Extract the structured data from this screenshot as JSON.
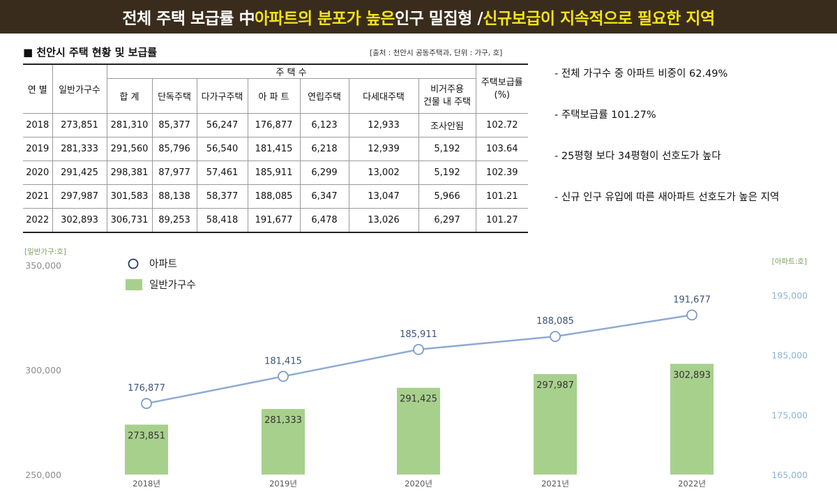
{
  "banner": {
    "part1": "전체 주택 보급률 中 ",
    "part2": "아파트의 분포가 높은",
    "part3": " 인구 밀집형 / ",
    "part4": "신규보급이 지속적으로 필요한 지역"
  },
  "table": {
    "title": "■ 천안시 주택 현황 및 보급률",
    "source": "[출처 : 천안시 공동주택과, 단위 : 가구, 호]",
    "header_group": "주 택 수",
    "headers": {
      "year": "연 별",
      "households": "일반가구수",
      "total": "합 계",
      "detached": "단독주택",
      "multi_household": "다가구주택",
      "apartment": "아 파 트",
      "row_house": "연립주택",
      "multiplex": "다세대주택",
      "nonres_line1": "비거주용",
      "nonres_line2": "건물 내 주택",
      "rate_line1": "주택보급률",
      "rate_line2": "(%)"
    },
    "rows": [
      [
        "2018",
        "273,851",
        "281,310",
        "85,377",
        "56,247",
        "176,877",
        "6,123",
        "12,933",
        "조사안됨",
        "102.72"
      ],
      [
        "2019",
        "281,333",
        "291,560",
        "85,796",
        "56,540",
        "181,415",
        "6,218",
        "12,939",
        "5,192",
        "103.64"
      ],
      [
        "2020",
        "291,425",
        "298,381",
        "87,977",
        "57,461",
        "185,911",
        "6,299",
        "13,002",
        "5,192",
        "102.39"
      ],
      [
        "2021",
        "297,987",
        "301,583",
        "88,138",
        "58,377",
        "188,085",
        "6,347",
        "13,047",
        "5,966",
        "101.21"
      ],
      [
        "2022",
        "302,893",
        "306,731",
        "89,253",
        "58,418",
        "191,677",
        "6,478",
        "13,026",
        "6,297",
        "101.27"
      ]
    ]
  },
  "bullets": [
    "- 전체 가구수 중 아파트 비중이 62.49%",
    "- 주택보급률 101.27%",
    "- 25평형 보다 34평형이 선호도가 높다",
    "- 신규 인구 유입에 따른 새아파트 선호도가 높은 지역"
  ],
  "chart_data": {
    "type": "bar",
    "categories": [
      "2018년",
      "2019년",
      "2020년",
      "2021년",
      "2022년"
    ],
    "series": [
      {
        "name": "일반가구수",
        "type": "bar",
        "axis": "left",
        "values": [
          273851,
          281333,
          291425,
          297987,
          302893
        ],
        "labels": [
          "273,851",
          "281,333",
          "291,425",
          "297,987",
          "302,893"
        ],
        "color": "#a8d08d"
      },
      {
        "name": "아파트",
        "type": "line",
        "axis": "right",
        "values": [
          176877,
          181415,
          185911,
          188085,
          191677
        ],
        "labels": [
          "176,877",
          "181,415",
          "185,911",
          "188,085",
          "191,677"
        ],
        "color": "#8eaad6"
      }
    ],
    "left_axis": {
      "unit": "[일반가구:호]",
      "ylim": [
        250000,
        350000
      ],
      "ticks": [
        250000,
        300000,
        350000
      ],
      "tick_labels": [
        "250,000",
        "300,000",
        "350,000"
      ],
      "color": "#7aa05a"
    },
    "right_axis": {
      "unit": "[아파트:호]",
      "ylim": [
        165000,
        200000
      ],
      "ticks": [
        165000,
        175000,
        185000,
        195000
      ],
      "tick_labels": [
        "165,000",
        "175,000",
        "185,000",
        "195,000"
      ],
      "color": "#7aa05a"
    },
    "legend": {
      "position": "top-left"
    }
  }
}
